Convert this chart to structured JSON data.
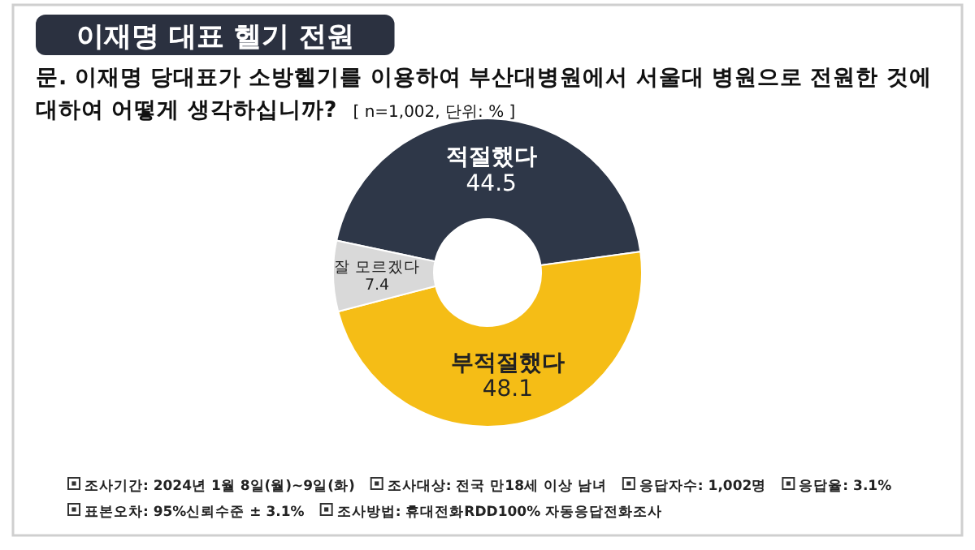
{
  "chart_data": {
    "type": "donut",
    "title": "이재명 대표 헬기 전원",
    "subtitle": "문. 이재명 당대표가 소방헬기를 이용하여 부산대병원에서 서울대 병원으로 전원한 것에 대하여 어떻게 생각하십니까?",
    "categories": [
      "적절했다",
      "부적절했다",
      "잘 모르겠다"
    ],
    "values": [
      44.5,
      48.1,
      7.4
    ],
    "colors": [
      "#2e3748",
      "#f5bd16",
      "#d9d9d9"
    ],
    "data_labels": true,
    "annotations": [
      "[ n=1,002, 단위: % ]",
      "조사기간: 2024년 1월 8일(월)~9일(화)",
      "조사대상: 전국 만18세 이상 남녀",
      "응답자수: 1,002명",
      "응답율: 3.1%",
      "표본오차: 95%신뢰수준 ± 3.1%",
      "조사방법: 휴대전화RDD100% 자동응답전화조사"
    ]
  }
}
